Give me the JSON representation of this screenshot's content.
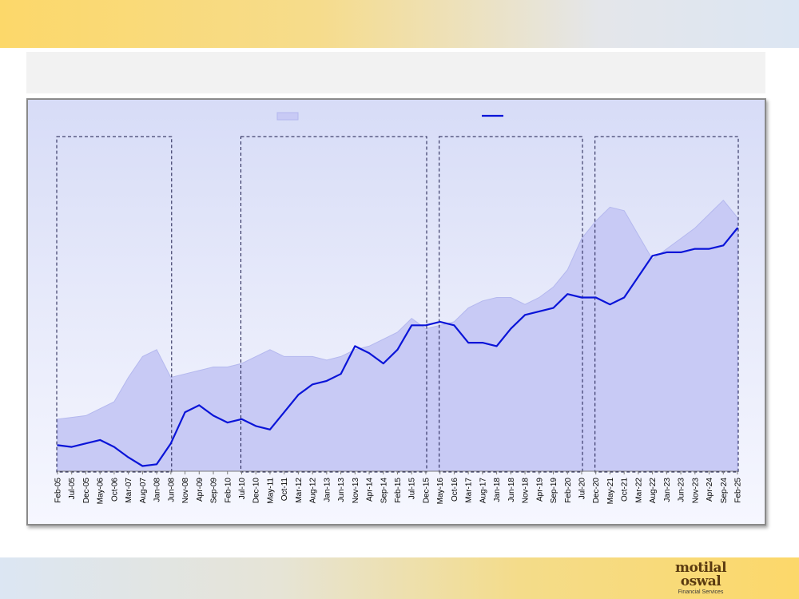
{
  "chart_data": {
    "type": "line",
    "title": "",
    "xlabel": "",
    "ylabel": "",
    "categories": [
      "Feb-05",
      "Jul-05",
      "Dec-05",
      "May-06",
      "Oct-06",
      "Mar-07",
      "Aug-07",
      "Jan-08",
      "Jun-08",
      "Nov-08",
      "Apr-09",
      "Sep-09",
      "Feb-10",
      "Jul-10",
      "Dec-10",
      "May-11",
      "Oct-11",
      "Mar-12",
      "Aug-12",
      "Jan-13",
      "Jun-13",
      "Nov-13",
      "Apr-14",
      "Sep-14",
      "Feb-15",
      "Jul-15",
      "Dec-15",
      "May-16",
      "Oct-16",
      "Mar-17",
      "Aug-17",
      "Jan-18",
      "Jun-18",
      "Nov-18",
      "Apr-19",
      "Sep-19",
      "Feb-20",
      "Jul-20",
      "Dec-20",
      "May-21",
      "Oct-21",
      "Mar-22",
      "Aug-22",
      "Jan-23",
      "Jun-23",
      "Nov-23",
      "Apr-24",
      "Sep-24",
      "Feb-25"
    ],
    "ylim": [
      0,
      100
    ],
    "grid": false,
    "legend_position": "top-center",
    "series": [
      {
        "role": "area",
        "color": "#c8caf5",
        "values": [
          15,
          15.5,
          16,
          18,
          20,
          27,
          33,
          35,
          27,
          28,
          29,
          30,
          30,
          31,
          33,
          35,
          33,
          33,
          33,
          32,
          33,
          35,
          36,
          38,
          40,
          44,
          41,
          42,
          43,
          47,
          49,
          50,
          50,
          48,
          50,
          53,
          58,
          67,
          72,
          76,
          75,
          68,
          61,
          64,
          67,
          70,
          74,
          78,
          73
        ]
      },
      {
        "role": "line",
        "color": "#0a14d8",
        "values": [
          7.5,
          7,
          8,
          9,
          7,
          4,
          1.5,
          2,
          8,
          17,
          19,
          16,
          14,
          15,
          13,
          12,
          17,
          22,
          25,
          26,
          28,
          36,
          34,
          31,
          35,
          42,
          42,
          43,
          42,
          37,
          37,
          36,
          41,
          45,
          46,
          47,
          51,
          50,
          50,
          48,
          50,
          56,
          62,
          63,
          63,
          64,
          64,
          65,
          70
        ]
      }
    ],
    "highlight_periods": [
      {
        "from": "Feb-05",
        "to": "Jun-08"
      },
      {
        "from": "Jul-10",
        "to": "Dec-15"
      },
      {
        "from": "May-16",
        "to": "Jul-20"
      },
      {
        "from": "Dec-20",
        "to": "Feb-25"
      }
    ]
  }
}
